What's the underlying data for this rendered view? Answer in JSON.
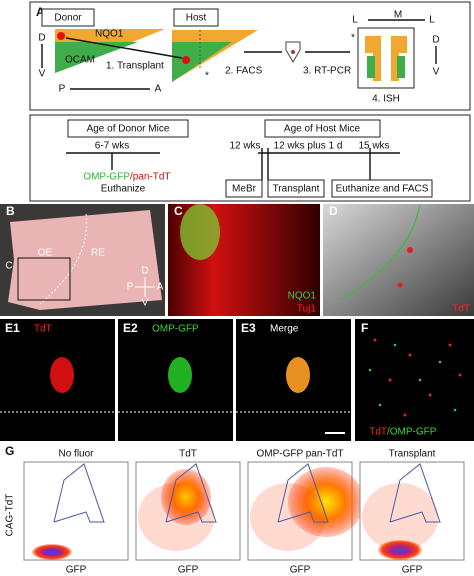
{
  "panel_a": {
    "label": "A",
    "donor": "Donor",
    "host": "Host",
    "nqo1": "NQO1",
    "ocam": "OCAM",
    "axis_d": "D",
    "axis_v": "V",
    "axis_p": "P",
    "axis_a": "A",
    "step1": "1. Transplant",
    "step2": "2. FACS",
    "step3": "3. RT-PCR",
    "step4": "4. ISH",
    "ish_l1": "L",
    "ish_m": "M",
    "ish_l2": "L",
    "ish_d": "D",
    "ish_v": "V",
    "star1": "*",
    "star2": "*"
  },
  "timeline": {
    "donor_title": "Age of Donor Mice",
    "donor_age": "6-7 wks",
    "donor_line": [
      "OMP-GFP",
      "/pan-TdT"
    ],
    "donor_action": "Euthanize",
    "host_title": "Age of Host Mice",
    "host_ages": [
      "12 wks",
      "12 wks plus 1 d",
      "15 wks"
    ],
    "host_events": [
      "MeBr",
      "Transplant",
      "Euthanize and FACS"
    ]
  },
  "panel_b": {
    "label": "B",
    "oe": "OE",
    "re": "RE",
    "inset": "C",
    "compass": [
      "D",
      "P",
      "A",
      "V"
    ]
  },
  "panel_c": {
    "label": "C",
    "stain1": "NQO1",
    "stain2": "Tuj1"
  },
  "panel_d": {
    "label": "D",
    "stain": "TdT"
  },
  "panel_e": [
    {
      "label": "E1",
      "stain": "TdT"
    },
    {
      "label": "E2",
      "stain": "OMP-GFP"
    },
    {
      "label": "E3",
      "stain": "Merge"
    }
  ],
  "panel_f": {
    "label": "F",
    "stain1": "TdT",
    "stain2": "/OMP-GFP"
  },
  "panel_g": {
    "label": "G",
    "y_label": "CAG-TdT",
    "plots": [
      {
        "title": "No fluor",
        "x_label": "GFP"
      },
      {
        "title": "TdT",
        "x_label": "GFP"
      },
      {
        "title": "OMP-GFP pan-TdT",
        "x_label": "GFP"
      },
      {
        "title": "Transplant",
        "x_label": "GFP"
      }
    ]
  }
}
